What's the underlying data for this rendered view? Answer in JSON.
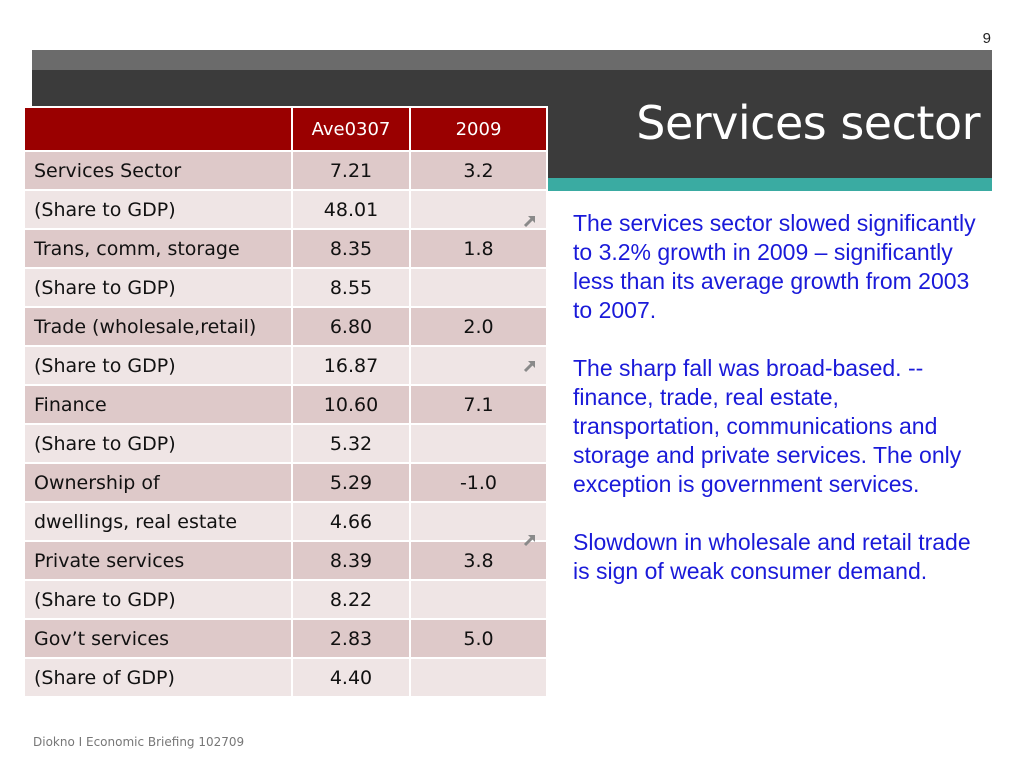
{
  "slide": {
    "page_number": "9",
    "title": "Services sector",
    "footer": "Diokno I Economic Briefing 102709",
    "colors": {
      "header_band": "#3b3b3b",
      "top_bar": "#6b6b6b",
      "accent_teal": "#3aaba2",
      "table_header": "#9a0000",
      "body_text": "#1a1ad9"
    }
  },
  "table": {
    "headers": [
      "",
      "Ave0307",
      "2009"
    ],
    "rows": [
      [
        "Services Sector",
        "7.21",
        "3.2"
      ],
      [
        "(Share to GDP)",
        "48.01",
        ""
      ],
      [
        "Trans, comm, storage",
        "8.35",
        "1.8"
      ],
      [
        "(Share to GDP)",
        "8.55",
        ""
      ],
      [
        "Trade (wholesale,retail)",
        "6.80",
        "2.0"
      ],
      [
        "(Share to GDP)",
        "16.87",
        ""
      ],
      [
        "Finance",
        "10.60",
        "7.1"
      ],
      [
        "(Share to GDP)",
        "5.32",
        ""
      ],
      [
        "Ownership of",
        "5.29",
        "-1.0"
      ],
      [
        "dwellings, real estate",
        "4.66",
        ""
      ],
      [
        "Private services",
        "8.39",
        "3.8"
      ],
      [
        "(Share to GDP)",
        "8.22",
        ""
      ],
      [
        "Gov’t services",
        "2.83",
        "5.0"
      ],
      [
        "(Share of GDP)",
        "4.40",
        ""
      ]
    ]
  },
  "bullets": [
    {
      "icon": "arrow-up-right-icon",
      "text": "The services sector slowed significantly to 3.2% growth in 2009 – significantly less than its average growth from 2003 to 2007."
    },
    {
      "icon": "arrow-up-right-icon",
      "text": "The sharp fall was broad-based. --finance, trade, real estate, transportation, communications and storage and private services. The only exception is government services."
    },
    {
      "icon": "arrow-up-right-icon",
      "text": "Slowdown in wholesale and retail trade is sign of weak consumer demand."
    }
  ]
}
